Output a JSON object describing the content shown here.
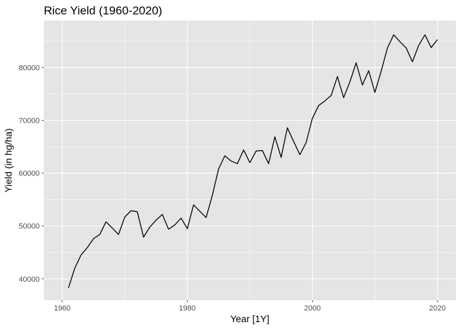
{
  "chart_data": {
    "type": "line",
    "title": "Rice Yield (1960-2020)",
    "xlabel": "Year [1Y]",
    "ylabel": "Yield (in hg/ha)",
    "xlim": [
      1957.05,
      2022.95
    ],
    "ylim": [
      35950,
      88900
    ],
    "x_ticks": [
      1960,
      1980,
      2000,
      2020
    ],
    "x_minor_ticks": [
      1970,
      1990,
      2010
    ],
    "y_ticks": [
      40000,
      50000,
      60000,
      70000,
      80000
    ],
    "y_tick_labels": [
      "40000",
      "50000",
      "60000",
      "70000",
      "80000"
    ],
    "y_minor_ticks": [
      45000,
      55000,
      65000,
      75000,
      85000
    ],
    "grid": true,
    "colors": {
      "panel": "#e5e5e5",
      "grid": "#ffffff",
      "line": "#000000",
      "tick": "#4d4d4d"
    },
    "series": [
      {
        "name": "Yield",
        "x": [
          1961,
          1962,
          1963,
          1964,
          1965,
          1966,
          1967,
          1968,
          1969,
          1970,
          1971,
          1972,
          1973,
          1974,
          1975,
          1976,
          1977,
          1978,
          1979,
          1980,
          1981,
          1982,
          1983,
          1984,
          1985,
          1986,
          1987,
          1988,
          1989,
          1990,
          1991,
          1992,
          1993,
          1994,
          1995,
          1996,
          1997,
          1998,
          1999,
          2000,
          2001,
          2002,
          2003,
          2004,
          2005,
          2006,
          2007,
          2008,
          2009,
          2010,
          2011,
          2012,
          2013,
          2014,
          2015,
          2016,
          2017,
          2018,
          2019,
          2020
        ],
        "values": [
          38300,
          42000,
          44500,
          45900,
          47600,
          48400,
          50800,
          49600,
          48400,
          51700,
          52900,
          52700,
          47900,
          49800,
          51100,
          52200,
          49400,
          50200,
          51500,
          49500,
          54000,
          52800,
          51600,
          55800,
          60800,
          63300,
          62300,
          61800,
          64400,
          62000,
          64200,
          64300,
          61800,
          66900,
          63000,
          68600,
          66000,
          63500,
          65800,
          70400,
          72800,
          73700,
          74700,
          78300,
          74300,
          77300,
          80900,
          76700,
          79400,
          75300,
          79300,
          83700,
          86200,
          84900,
          83700,
          81100,
          84200,
          86200,
          83800,
          85300
        ]
      }
    ]
  }
}
